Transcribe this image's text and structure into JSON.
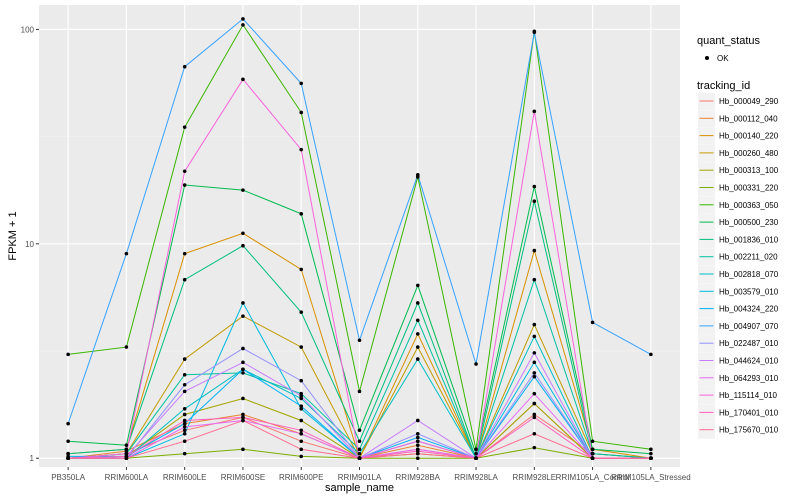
{
  "chart_data": {
    "type": "line",
    "xlabel": "sample_name",
    "ylabel": "FPKM + 1",
    "y_scale": "log10",
    "ylim": [
      0.91,
      130
    ],
    "y_ticks": [
      1,
      10,
      100
    ],
    "y_tick_labels": [
      "1",
      "10",
      "100"
    ],
    "categories": [
      "PB350LA",
      "RRIM600LA",
      "RRIM600LE",
      "RRIM600SE",
      "RRIM600PE",
      "RRIM901LA",
      "RRIM928BA",
      "RRIM928LA",
      "RRIM928LE",
      "RRIM105LA_Control",
      "RRIM105LA_Stressed"
    ],
    "grid": true,
    "legend_placement": "right",
    "quant_status": {
      "title": "quant_status",
      "entries": [
        "OK"
      ]
    },
    "legend_title": "tracking_id",
    "series": [
      {
        "name": "Hb_000049_290",
        "color": "#F8766D",
        "values": [
          1.0,
          1.05,
          1.35,
          1.55,
          1.2,
          1.0,
          1.1,
          1.0,
          1.6,
          1.05,
          1.0
        ]
      },
      {
        "name": "Hb_000112_040",
        "color": "#EA8331",
        "values": [
          1.0,
          1.08,
          1.45,
          1.6,
          1.3,
          1.0,
          1.15,
          1.0,
          1.8,
          1.0,
          1.0
        ]
      },
      {
        "name": "Hb_000140_220",
        "color": "#D89000",
        "values": [
          1.05,
          1.1,
          9.0,
          11.2,
          7.6,
          1.0,
          3.8,
          1.0,
          9.3,
          1.1,
          1.0
        ]
      },
      {
        "name": "Hb_000260_480",
        "color": "#C09B00",
        "values": [
          1.0,
          1.05,
          2.9,
          4.6,
          3.3,
          1.0,
          3.3,
          1.0,
          4.2,
          1.05,
          1.0
        ]
      },
      {
        "name": "Hb_000313_100",
        "color": "#A3A500",
        "values": [
          1.0,
          1.02,
          1.6,
          1.9,
          1.5,
          1.0,
          1.05,
          1.0,
          1.8,
          1.0,
          1.0
        ]
      },
      {
        "name": "Hb_000331_220",
        "color": "#7CAE00",
        "values": [
          1.0,
          1.0,
          1.05,
          1.1,
          1.02,
          1.0,
          1.0,
          1.0,
          1.12,
          1.0,
          1.0
        ]
      },
      {
        "name": "Hb_000363_050",
        "color": "#39B600",
        "values": [
          3.05,
          3.3,
          35.0,
          105.0,
          41.0,
          2.05,
          20.5,
          1.1,
          98.0,
          1.2,
          1.1
        ]
      },
      {
        "name": "Hb_000500_230",
        "color": "#00BB4E",
        "values": [
          1.2,
          1.15,
          18.8,
          17.8,
          13.8,
          1.35,
          6.4,
          1.05,
          18.5,
          1.1,
          1.05
        ]
      },
      {
        "name": "Hb_001836_010",
        "color": "#00BF7D",
        "values": [
          1.05,
          1.1,
          6.8,
          9.8,
          4.8,
          1.2,
          5.3,
          1.0,
          15.8,
          1.05,
          1.0
        ]
      },
      {
        "name": "Hb_002211_020",
        "color": "#00C1A3",
        "values": [
          1.0,
          1.05,
          2.45,
          2.5,
          2.0,
          1.1,
          4.4,
          1.0,
          6.8,
          1.05,
          1.0
        ]
      },
      {
        "name": "Hb_002818_070",
        "color": "#00BFC4",
        "values": [
          1.0,
          1.0,
          1.7,
          2.6,
          1.9,
          1.05,
          2.9,
          1.0,
          3.7,
          1.0,
          1.0
        ]
      },
      {
        "name": "Hb_003579_010",
        "color": "#00BAE0",
        "values": [
          1.0,
          1.0,
          1.3,
          5.3,
          1.7,
          1.0,
          1.2,
          1.0,
          2.8,
          1.0,
          1.0
        ]
      },
      {
        "name": "Hb_004324_220",
        "color": "#00B0F6",
        "values": [
          1.02,
          1.02,
          1.45,
          2.6,
          1.75,
          1.0,
          1.25,
          1.0,
          2.4,
          1.0,
          1.0
        ]
      },
      {
        "name": "Hb_004907_070",
        "color": "#35A2FF",
        "values": [
          1.45,
          9.0,
          67.0,
          112.0,
          56.0,
          3.55,
          21.0,
          2.75,
          97.0,
          4.3,
          3.05
        ]
      },
      {
        "name": "Hb_022487_010",
        "color": "#9590FF",
        "values": [
          1.0,
          1.0,
          2.2,
          3.25,
          2.3,
          1.0,
          1.3,
          1.0,
          2.5,
          1.0,
          1.0
        ]
      },
      {
        "name": "Hb_044624_010",
        "color": "#C77CFF",
        "values": [
          1.0,
          1.02,
          2.05,
          2.8,
          1.95,
          1.0,
          1.5,
          1.0,
          3.1,
          1.0,
          1.0
        ]
      },
      {
        "name": "Hb_064293_010",
        "color": "#E76BF3",
        "values": [
          1.0,
          1.0,
          1.4,
          1.5,
          1.3,
          1.0,
          1.1,
          1.0,
          2.0,
          1.0,
          1.0
        ]
      },
      {
        "name": "Hb_115114_010",
        "color": "#FA62DB",
        "values": [
          1.0,
          1.05,
          21.8,
          58.5,
          27.5,
          1.0,
          1.2,
          1.0,
          41.5,
          1.0,
          1.0
        ]
      },
      {
        "name": "Hb_170401_010",
        "color": "#FF62BC",
        "values": [
          1.0,
          1.02,
          1.5,
          1.55,
          1.35,
          1.0,
          1.08,
          1.0,
          1.55,
          1.0,
          1.0
        ]
      },
      {
        "name": "Hb_175670_010",
        "color": "#FF6C91",
        "values": [
          1.0,
          1.0,
          1.2,
          1.5,
          1.1,
          1.0,
          1.05,
          1.0,
          1.3,
          1.0,
          1.0
        ]
      }
    ]
  }
}
